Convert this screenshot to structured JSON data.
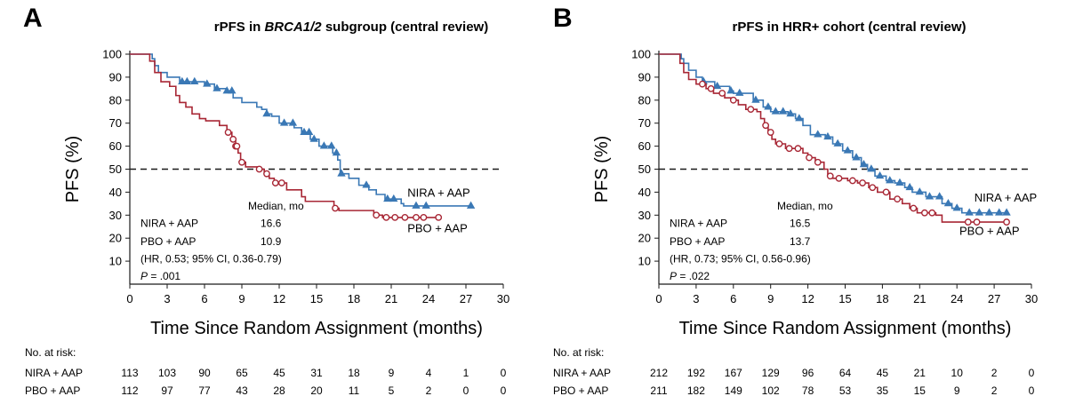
{
  "colors": {
    "nira": "#3a78b5",
    "pbo": "#a82735",
    "axis": "#1a1a1a",
    "dash": "#1a1a1a"
  },
  "chart_data": [
    {
      "type": "line",
      "panel_letter": "A",
      "title_prefix": "rPFS in ",
      "title_italic": "BRCA1/2",
      "title_suffix": " subgroup (central review)",
      "xlabel": "Time Since Random Assignment (months)",
      "ylabel": "PFS (%)",
      "xlim": [
        0,
        30
      ],
      "ylim": [
        0,
        100
      ],
      "xticks": [
        0,
        3,
        6,
        9,
        12,
        15,
        18,
        21,
        24,
        27,
        30
      ],
      "yticks": [
        10,
        20,
        30,
        40,
        50,
        60,
        70,
        80,
        90,
        100
      ],
      "reference_line": 50,
      "series": [
        {
          "name": "NIRA + AAP",
          "color_key": "nira",
          "marker": "triangle",
          "steps": [
            [
              0,
              100
            ],
            [
              1.8,
              98
            ],
            [
              2.0,
              95
            ],
            [
              2.3,
              92
            ],
            [
              3.0,
              90
            ],
            [
              4.0,
              88
            ],
            [
              6.0,
              87
            ],
            [
              6.8,
              85
            ],
            [
              7.8,
              84
            ],
            [
              8.3,
              81
            ],
            [
              9.0,
              79
            ],
            [
              10.2,
              77
            ],
            [
              10.6,
              76
            ],
            [
              11.0,
              74
            ],
            [
              11.4,
              73
            ],
            [
              12.0,
              70
            ],
            [
              13.2,
              68
            ],
            [
              13.8,
              66
            ],
            [
              14.5,
              63
            ],
            [
              15.2,
              60
            ],
            [
              16.3,
              57
            ],
            [
              16.7,
              54
            ],
            [
              16.9,
              48
            ],
            [
              17.6,
              46
            ],
            [
              18.4,
              43
            ],
            [
              19.2,
              41
            ],
            [
              19.8,
              39
            ],
            [
              20.5,
              37
            ],
            [
              21.8,
              35
            ],
            [
              22.0,
              34
            ],
            [
              27.4,
              34
            ]
          ],
          "censored": [
            4.2,
            4.6,
            5.2,
            6.2,
            7.0,
            7.8,
            8.2,
            11.0,
            12.4,
            13.1,
            14.0,
            14.4,
            14.8,
            15.6,
            16.2,
            16.6,
            17.0,
            19.0,
            20.7,
            21.2,
            23.0,
            23.8,
            27.4
          ]
        },
        {
          "name": "PBO + AAP",
          "color_key": "pbo",
          "marker": "circle",
          "steps": [
            [
              0,
              100
            ],
            [
              1.6,
              97
            ],
            [
              2.0,
              92
            ],
            [
              2.5,
              88
            ],
            [
              3.2,
              86
            ],
            [
              3.7,
              82
            ],
            [
              4.0,
              79
            ],
            [
              4.5,
              77
            ],
            [
              5.0,
              74
            ],
            [
              5.6,
              72
            ],
            [
              6.1,
              71
            ],
            [
              7.2,
              69
            ],
            [
              7.8,
              66
            ],
            [
              8.2,
              63
            ],
            [
              8.5,
              60
            ],
            [
              8.7,
              57
            ],
            [
              8.9,
              53
            ],
            [
              9.3,
              51
            ],
            [
              10.4,
              50
            ],
            [
              10.8,
              48
            ],
            [
              11.2,
              46
            ],
            [
              11.6,
              44
            ],
            [
              12.6,
              41
            ],
            [
              13.8,
              38
            ],
            [
              14.1,
              36
            ],
            [
              16.4,
              33
            ],
            [
              16.8,
              32
            ],
            [
              19.6,
              30
            ],
            [
              20.3,
              29
            ],
            [
              25.0,
              29
            ]
          ],
          "censored": [
            7.9,
            8.3,
            8.5,
            8.6,
            9.0,
            10.4,
            11.0,
            11.7,
            12.2,
            16.5,
            19.8,
            20.6,
            21.3,
            22.1,
            23.0,
            23.6,
            24.8
          ]
        }
      ],
      "series_labels": [
        {
          "text": "NIRA + AAP",
          "x": 22.3,
          "y": 38
        },
        {
          "text": "PBO + AAP",
          "x": 22.3,
          "y": 22.5
        }
      ],
      "stats": {
        "median_header": "Median, mo",
        "rows": [
          {
            "label": "NIRA + AAP",
            "value": "16.6"
          },
          {
            "label": "PBO + AAP",
            "value": "10.9"
          }
        ],
        "hr_text": "(HR, 0.53; 95% CI, 0.36-0.79)",
        "p_label": "P",
        "p_value": " = .001"
      },
      "risk_table": {
        "title": "No. at risk:",
        "rows": [
          {
            "label": "NIRA + AAP",
            "values": [
              "113",
              "103",
              "90",
              "65",
              "45",
              "31",
              "18",
              "9",
              "4",
              "1",
              "0"
            ]
          },
          {
            "label": "PBO + AAP",
            "values": [
              "112",
              "97",
              "77",
              "43",
              "28",
              "20",
              "11",
              "5",
              "2",
              "0",
              "0"
            ]
          }
        ]
      }
    },
    {
      "type": "line",
      "panel_letter": "B",
      "title_prefix": "rPFS in HRR+ cohort (central review)",
      "title_italic": "",
      "title_suffix": "",
      "xlabel": "Time Since Random Assignment (months)",
      "ylabel": "PFS (%)",
      "xlim": [
        0,
        30
      ],
      "ylim": [
        0,
        100
      ],
      "xticks": [
        0,
        3,
        6,
        9,
        12,
        15,
        18,
        21,
        24,
        27,
        30
      ],
      "yticks": [
        10,
        20,
        30,
        40,
        50,
        60,
        70,
        80,
        90,
        100
      ],
      "reference_line": 50,
      "series": [
        {
          "name": "NIRA + AAP",
          "color_key": "nira",
          "marker": "triangle",
          "steps": [
            [
              0,
              100
            ],
            [
              1.8,
              98
            ],
            [
              2.0,
              96
            ],
            [
              2.4,
              93
            ],
            [
              3.0,
              90
            ],
            [
              3.5,
              88
            ],
            [
              4.5,
              86
            ],
            [
              5.7,
              84
            ],
            [
              6.0,
              83
            ],
            [
              7.6,
              80
            ],
            [
              8.4,
              77
            ],
            [
              9.0,
              75
            ],
            [
              10.4,
              74
            ],
            [
              11.0,
              72
            ],
            [
              11.6,
              69
            ],
            [
              12.2,
              65
            ],
            [
              13.4,
              64
            ],
            [
              14.0,
              61
            ],
            [
              14.8,
              58
            ],
            [
              15.6,
              55
            ],
            [
              16.3,
              52
            ],
            [
              16.8,
              50
            ],
            [
              17.4,
              47
            ],
            [
              18.3,
              45
            ],
            [
              19.0,
              44
            ],
            [
              19.8,
              42
            ],
            [
              20.4,
              40
            ],
            [
              21.5,
              38
            ],
            [
              22.8,
              35
            ],
            [
              23.6,
              33
            ],
            [
              24.4,
              31
            ],
            [
              28.0,
              31
            ]
          ],
          "censored": [
            3.6,
            4.7,
            5.8,
            6.5,
            7.8,
            8.8,
            9.4,
            10.0,
            10.6,
            11.3,
            12.8,
            13.6,
            14.4,
            15.2,
            15.9,
            16.5,
            17.1,
            17.8,
            18.6,
            19.4,
            20.2,
            21.0,
            21.8,
            22.6,
            23.3,
            24.0,
            25.0,
            25.8,
            26.6,
            27.4,
            28.0
          ]
        },
        {
          "name": "PBO + AAP",
          "color_key": "pbo",
          "marker": "circle",
          "steps": [
            [
              0,
              100
            ],
            [
              1.7,
              96
            ],
            [
              2.0,
              92
            ],
            [
              2.4,
              89
            ],
            [
              3.0,
              87
            ],
            [
              3.8,
              85
            ],
            [
              4.4,
              83
            ],
            [
              5.3,
              81
            ],
            [
              5.8,
              80
            ],
            [
              6.4,
              78
            ],
            [
              7.0,
              76
            ],
            [
              7.9,
              75
            ],
            [
              8.2,
              72
            ],
            [
              8.5,
              69
            ],
            [
              8.8,
              66
            ],
            [
              9.1,
              63
            ],
            [
              9.4,
              61
            ],
            [
              10.2,
              59
            ],
            [
              11.6,
              57
            ],
            [
              12.0,
              55
            ],
            [
              12.6,
              53
            ],
            [
              13.3,
              50
            ],
            [
              13.6,
              47
            ],
            [
              14.0,
              46
            ],
            [
              15.2,
              45
            ],
            [
              16.0,
              44
            ],
            [
              16.9,
              42
            ],
            [
              17.6,
              40
            ],
            [
              18.6,
              37
            ],
            [
              19.6,
              35
            ],
            [
              20.2,
              33
            ],
            [
              20.8,
              31
            ],
            [
              22.3,
              30
            ],
            [
              22.8,
              27
            ],
            [
              28.0,
              27
            ]
          ],
          "censored": [
            3.5,
            4.2,
            5.1,
            6.0,
            7.4,
            8.6,
            9.0,
            9.7,
            10.5,
            11.2,
            12.1,
            12.8,
            13.8,
            14.5,
            15.6,
            16.4,
            17.2,
            18.3,
            19.2,
            20.5,
            21.4,
            22.0,
            24.9,
            25.6,
            28.0
          ]
        }
      ],
      "series_labels": [
        {
          "text": "NIRA + AAP",
          "x": 25.4,
          "y": 36
        },
        {
          "text": "PBO + AAP",
          "x": 24.2,
          "y": 21.5
        }
      ],
      "stats": {
        "median_header": "Median, mo",
        "rows": [
          {
            "label": "NIRA + AAP",
            "value": "16.5"
          },
          {
            "label": "PBO + AAP",
            "value": "13.7"
          }
        ],
        "hr_text": "(HR, 0.73; 95% CI, 0.56-0.96)",
        "p_label": "P",
        "p_value": " = .022"
      },
      "risk_table": {
        "title": "No. at risk:",
        "rows": [
          {
            "label": "NIRA + AAP",
            "values": [
              "212",
              "192",
              "167",
              "129",
              "96",
              "64",
              "45",
              "21",
              "10",
              "2",
              "0"
            ]
          },
          {
            "label": "PBO + AAP",
            "values": [
              "211",
              "182",
              "149",
              "102",
              "78",
              "53",
              "35",
              "15",
              "9",
              "2",
              "0"
            ]
          }
        ]
      }
    }
  ]
}
